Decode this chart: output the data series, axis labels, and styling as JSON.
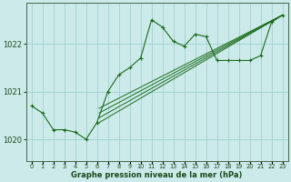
{
  "bg_color": "#cceaea",
  "grid_color": "#99cccc",
  "line_color": "#1a6b1a",
  "xlabel": "Graphe pression niveau de la mer (hPa)",
  "xlim": [
    -0.5,
    23.5
  ],
  "ylim": [
    1019.55,
    1022.85
  ],
  "yticks": [
    1020,
    1021,
    1022
  ],
  "xticks": [
    0,
    1,
    2,
    3,
    4,
    5,
    6,
    7,
    8,
    9,
    10,
    11,
    12,
    13,
    14,
    15,
    16,
    17,
    18,
    19,
    20,
    21,
    22,
    23
  ],
  "line1_x": [
    0,
    1,
    2,
    3,
    4,
    5,
    6,
    7,
    8,
    9,
    10,
    11,
    12,
    13,
    14,
    15,
    16,
    17,
    18,
    19,
    20,
    21,
    22,
    23
  ],
  "line1_y": [
    1020.7,
    1020.55,
    1020.2,
    1020.2,
    1020.15,
    1020.0,
    1020.35,
    1021.0,
    1021.35,
    1021.5,
    1021.7,
    1022.5,
    1022.35,
    1022.05,
    1021.95,
    1022.2,
    1022.15,
    1021.65,
    1021.65,
    1021.65,
    1021.65,
    1021.75,
    1022.45,
    1022.6
  ],
  "line2_x": [
    6.2,
    23
  ],
  "line2_y": [
    1020.65,
    1022.6
  ],
  "line3_x": [
    6.2,
    23
  ],
  "line3_y": [
    1020.55,
    1022.6
  ],
  "line4_x": [
    6.2,
    23
  ],
  "line4_y": [
    1020.45,
    1022.6
  ],
  "line5_x": [
    6.2,
    23
  ],
  "line5_y": [
    1020.35,
    1022.6
  ]
}
